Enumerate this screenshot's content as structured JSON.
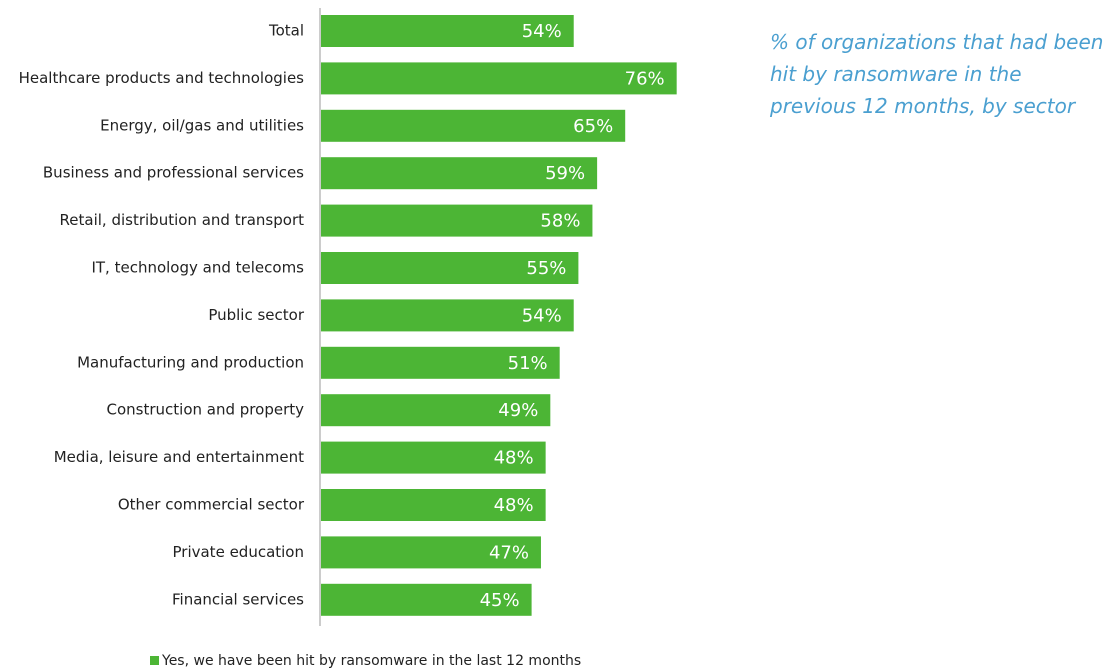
{
  "chart_data": {
    "type": "bar",
    "orientation": "horizontal",
    "annotation": "% of organizations that had been hit by ransomware in the previous 12 months, by sector",
    "categories": [
      "Total",
      "Healthcare products and technologies",
      "Energy, oil/gas and utilities",
      "Business and professional services",
      "Retail, distribution and transport",
      "IT, technology and telecoms",
      "Public sector",
      "Manufacturing and production",
      "Construction and property",
      "Media, leisure and entertainment",
      "Other commercial sector",
      "Private education",
      "Financial services"
    ],
    "series": [
      {
        "name": "Yes, we have been hit by ransomware in the last 12 months",
        "color": "#4cb535",
        "values": [
          54,
          76,
          65,
          59,
          58,
          55,
          54,
          51,
          49,
          48,
          48,
          47,
          45
        ],
        "value_labels": [
          "54%",
          "76%",
          "65%",
          "59%",
          "58%",
          "55%",
          "54%",
          "51%",
          "49%",
          "48%",
          "48%",
          "47%",
          "45%"
        ]
      }
    ],
    "xlim": [
      0,
      100
    ]
  }
}
